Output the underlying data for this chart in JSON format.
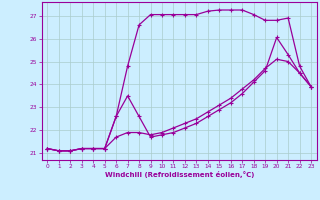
{
  "xlabel": "Windchill (Refroidissement éolien,°C)",
  "bg_color": "#cceeff",
  "grid_color": "#aacccc",
  "line_color": "#990099",
  "xlim": [
    -0.5,
    23.5
  ],
  "ylim": [
    20.7,
    27.6
  ],
  "xticks": [
    0,
    1,
    2,
    3,
    4,
    5,
    6,
    7,
    8,
    9,
    10,
    11,
    12,
    13,
    14,
    15,
    16,
    17,
    18,
    19,
    20,
    21,
    22,
    23
  ],
  "yticks": [
    21,
    22,
    23,
    24,
    25,
    26,
    27
  ],
  "line1_x": [
    0,
    1,
    2,
    3,
    4,
    5,
    6,
    7,
    8,
    9,
    10,
    11,
    12,
    13,
    14,
    15,
    16,
    17,
    18,
    19,
    20,
    21,
    22,
    23
  ],
  "line1_y": [
    21.2,
    21.1,
    21.1,
    21.2,
    21.2,
    21.2,
    22.6,
    24.8,
    26.6,
    27.05,
    27.05,
    27.05,
    27.05,
    27.05,
    27.2,
    27.25,
    27.25,
    27.25,
    27.05,
    26.8,
    26.8,
    26.9,
    24.8,
    23.9
  ],
  "line2_x": [
    0,
    1,
    2,
    3,
    4,
    5,
    6,
    7,
    8,
    9,
    10,
    11,
    12,
    13,
    14,
    15,
    16,
    17,
    18,
    19,
    20,
    21,
    22,
    23
  ],
  "line2_y": [
    21.2,
    21.1,
    21.1,
    21.2,
    21.2,
    21.2,
    22.6,
    23.5,
    22.6,
    21.7,
    21.8,
    21.9,
    22.1,
    22.3,
    22.6,
    22.9,
    23.2,
    23.6,
    24.1,
    24.6,
    26.05,
    25.3,
    24.5,
    23.9
  ],
  "line3_x": [
    0,
    1,
    2,
    3,
    4,
    5,
    6,
    7,
    8,
    9,
    10,
    11,
    12,
    13,
    14,
    15,
    16,
    17,
    18,
    19,
    20,
    21,
    22,
    23
  ],
  "line3_y": [
    21.2,
    21.1,
    21.1,
    21.2,
    21.2,
    21.2,
    21.7,
    21.9,
    21.9,
    21.8,
    21.9,
    22.1,
    22.3,
    22.5,
    22.8,
    23.1,
    23.4,
    23.8,
    24.2,
    24.7,
    25.1,
    25.0,
    24.5,
    23.9
  ]
}
